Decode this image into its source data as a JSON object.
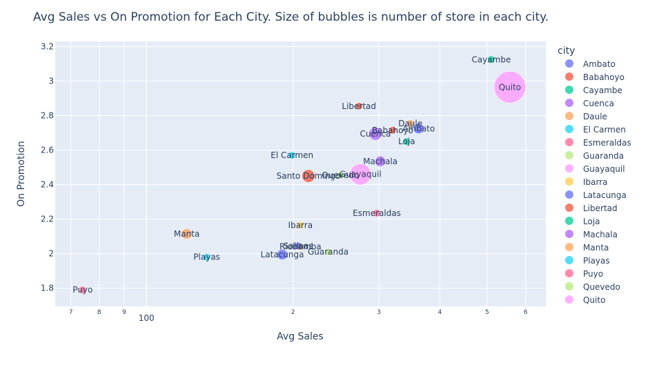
{
  "chart_data": {
    "type": "scatter",
    "title": "Avg Sales vs On Promotion for Each City. Size of bubbles is number of store in each city.",
    "xlabel": "Avg Sales",
    "ylabel": "On Promotion",
    "x_scale": "log",
    "xlim": [
      65,
      660
    ],
    "ylim": [
      1.695,
      3.23
    ],
    "x_ticks": [
      {
        "value": 70,
        "label": "7",
        "size": "small"
      },
      {
        "value": 80,
        "label": "8",
        "size": "small"
      },
      {
        "value": 90,
        "label": "9",
        "size": "small"
      },
      {
        "value": 100,
        "label": "100",
        "size": "major"
      },
      {
        "value": 200,
        "label": "2",
        "size": "small"
      },
      {
        "value": 300,
        "label": "3",
        "size": "small"
      },
      {
        "value": 400,
        "label": "4",
        "size": "small"
      },
      {
        "value": 500,
        "label": "5",
        "size": "small"
      },
      {
        "value": 600,
        "label": "6",
        "size": "small"
      }
    ],
    "y_ticks": [
      1.8,
      2,
      2.2,
      2.4,
      2.6,
      2.8,
      3,
      3.2
    ],
    "y_tick_labels": [
      "1.8",
      "2",
      "2.2",
      "2.4",
      "2.6",
      "2.8",
      "3",
      "3.2"
    ],
    "grid": true,
    "legend_title": "city",
    "legend_position": "right",
    "series": [
      {
        "name": "Ambato",
        "color": "#636efa",
        "x": 362,
        "y": 2.725,
        "stores": 2
      },
      {
        "name": "Babahoyo",
        "color": "#EF553B",
        "x": 320,
        "y": 2.715,
        "stores": 1
      },
      {
        "name": "Cayambe",
        "color": "#00cc96",
        "x": 510,
        "y": 3.125,
        "stores": 1
      },
      {
        "name": "Cuenca",
        "color": "#ab63fa",
        "x": 295,
        "y": 2.695,
        "stores": 3
      },
      {
        "name": "Daule",
        "color": "#FFA15A",
        "x": 348,
        "y": 2.755,
        "stores": 1
      },
      {
        "name": "El Carmen",
        "color": "#19d3f3",
        "x": 199,
        "y": 2.57,
        "stores": 1
      },
      {
        "name": "Esmeraldas",
        "color": "#FF6692",
        "x": 297,
        "y": 2.235,
        "stores": 1
      },
      {
        "name": "Guaranda",
        "color": "#B6E880",
        "x": 236,
        "y": 2.01,
        "stores": 1
      },
      {
        "name": "Guayaquil",
        "color": "#FF97FF",
        "x": 275,
        "y": 2.46,
        "stores": 8
      },
      {
        "name": "Ibarra",
        "color": "#FECB52",
        "x": 207,
        "y": 2.165,
        "stores": 1
      },
      {
        "name": "Latacunga",
        "color": "#636efa",
        "x": 190,
        "y": 1.995,
        "stores": 2
      },
      {
        "name": "Libertad",
        "color": "#EF553B",
        "x": 273,
        "y": 2.855,
        "stores": 1
      },
      {
        "name": "Loja",
        "color": "#00cc96",
        "x": 342,
        "y": 2.65,
        "stores": 1
      },
      {
        "name": "Machala",
        "color": "#ab63fa",
        "x": 302,
        "y": 2.535,
        "stores": 2
      },
      {
        "name": "Manta",
        "color": "#FFA15A",
        "x": 121,
        "y": 2.115,
        "stores": 2
      },
      {
        "name": "Playas",
        "color": "#19d3f3",
        "x": 133,
        "y": 1.98,
        "stores": 1
      },
      {
        "name": "Puyo",
        "color": "#FF6692",
        "x": 74,
        "y": 1.79,
        "stores": 1
      },
      {
        "name": "Quevedo",
        "color": "#B6E880",
        "x": 250,
        "y": 2.455,
        "stores": 1
      },
      {
        "name": "Quito",
        "color": "#FF97FF",
        "x": 557,
        "y": 2.965,
        "stores": 18
      },
      {
        "name": "Riobamba",
        "color": "#FECB52",
        "x": 207,
        "y": 2.04,
        "stores": 1
      },
      {
        "name": "Salinas",
        "color": "#636efa",
        "x": 205,
        "y": 2.045,
        "stores": 1
      },
      {
        "name": "Santo Domingo",
        "color": "#EF553B",
        "x": 215,
        "y": 2.45,
        "stores": 3
      }
    ],
    "legend_entries": [
      "Ambato",
      "Babahoyo",
      "Cayambe",
      "Cuenca",
      "Daule",
      "El Carmen",
      "Esmeraldas",
      "Guaranda",
      "Guayaquil",
      "Ibarra",
      "Latacunga",
      "Libertad",
      "Loja",
      "Machala",
      "Manta",
      "Playas",
      "Puyo",
      "Quevedo",
      "Quito"
    ],
    "point_labels": [
      {
        "text": "Cayambe",
        "city": "Cayambe"
      },
      {
        "text": "Quito",
        "city": "Quito"
      },
      {
        "text": "Libertad",
        "city": "Libertad"
      },
      {
        "text": "Daule",
        "city": "Daule"
      },
      {
        "text": "Babahoyo",
        "city": "Babahoyo"
      },
      {
        "text": "Ambato",
        "city": "Ambato"
      },
      {
        "text": "Cuenca",
        "city": "Cuenca"
      },
      {
        "text": "Loja",
        "city": "Loja"
      },
      {
        "text": "El Carmen",
        "city": "El Carmen"
      },
      {
        "text": "Machala",
        "city": "Machala"
      },
      {
        "text": "Santo Domingo",
        "city": "Santo Domingo"
      },
      {
        "text": "Quevedo",
        "city": "Quevedo"
      },
      {
        "text": "Guayaquil",
        "city": "Guayaquil"
      },
      {
        "text": "Esmeraldas",
        "city": "Esmeraldas"
      },
      {
        "text": "Ibarra",
        "city": "Ibarra"
      },
      {
        "text": "Manta",
        "city": "Manta"
      },
      {
        "text": "Salinas",
        "city": "Salinas"
      },
      {
        "text": "Riobamba",
        "city": "Riobamba"
      },
      {
        "text": "Guaranda",
        "city": "Guaranda"
      },
      {
        "text": "Latacunga",
        "city": "Latacunga"
      },
      {
        "text": "Playas",
        "city": "Playas"
      },
      {
        "text": "Puyo",
        "city": "Puyo"
      }
    ]
  },
  "colors": {
    "plot_bg": "#E5ECF6",
    "grid": "#ffffff",
    "text": "#2a3f5f"
  }
}
